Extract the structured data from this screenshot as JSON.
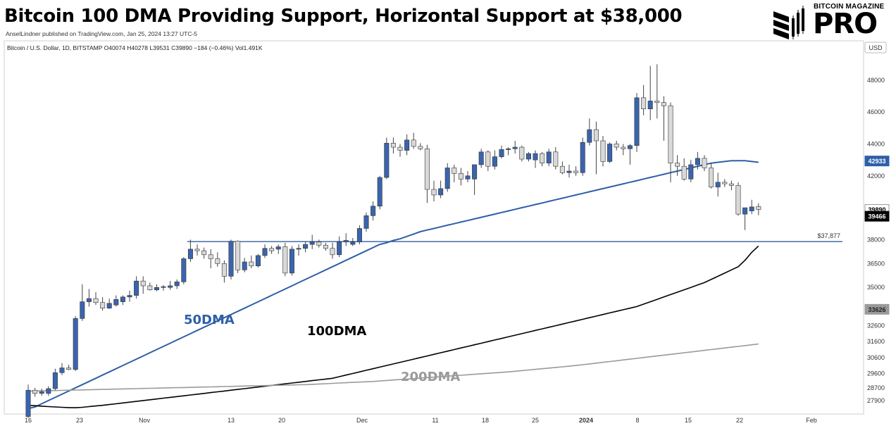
{
  "header": {
    "title": "Bitcoin 100 DMA Providing Support, Horizontal Support at $38,000",
    "byline": "AnselLindner published on TradingView.com, Jan 25, 2024 13:27 UTC-5",
    "symbol_line": "Bitcoin / U.S. Dollar, 1D, BITSTAMP  O40074  H40278  L39531  C39890  −184 (−0.46%)  Vol1.491K"
  },
  "brand": {
    "top": "BITCOIN MAGAZINE",
    "main": "PRO"
  },
  "colors": {
    "up_candle": "#3a64ad",
    "down_candle": "#d9d9d9",
    "ma50": "#2e5fa8",
    "ma100": "#000000",
    "ma200": "#9a9a9a",
    "support_line": "#1f4f9a"
  },
  "chart_data": {
    "type": "candlestick",
    "currency": "USD",
    "x_tick_labels": [
      "16",
      "23",
      "Nov",
      "13",
      "20",
      "Dec",
      "11",
      "18",
      "25",
      "2024",
      "8",
      "15",
      "22",
      "Feb"
    ],
    "y_tick_labels": [
      "48000",
      "46000",
      "44000",
      "42000",
      "38000",
      "36500",
      "35000",
      "32600",
      "31600",
      "30600",
      "29600",
      "28700",
      "27900"
    ],
    "ylim": [
      27500,
      49500
    ],
    "candles": [
      {
        "o": 26900,
        "h": 28900,
        "l": 26800,
        "c": 28550
      },
      {
        "o": 28550,
        "h": 28700,
        "l": 28150,
        "c": 28350
      },
      {
        "o": 28350,
        "h": 28650,
        "l": 28200,
        "c": 28450
      },
      {
        "o": 28350,
        "h": 28800,
        "l": 28200,
        "c": 28650
      },
      {
        "o": 28650,
        "h": 29900,
        "l": 28550,
        "c": 29650
      },
      {
        "o": 29650,
        "h": 30250,
        "l": 29500,
        "c": 29950
      },
      {
        "o": 29950,
        "h": 30150,
        "l": 29800,
        "c": 29850
      },
      {
        "o": 29850,
        "h": 33200,
        "l": 29750,
        "c": 33050
      },
      {
        "o": 33050,
        "h": 35200,
        "l": 32900,
        "c": 34100
      },
      {
        "o": 34100,
        "h": 34900,
        "l": 33800,
        "c": 34300
      },
      {
        "o": 34300,
        "h": 34700,
        "l": 33900,
        "c": 34050
      },
      {
        "o": 34050,
        "h": 34400,
        "l": 33550,
        "c": 33700
      },
      {
        "o": 33700,
        "h": 34300,
        "l": 33650,
        "c": 34000
      },
      {
        "o": 33900,
        "h": 34500,
        "l": 33800,
        "c": 34250
      },
      {
        "o": 34100,
        "h": 34500,
        "l": 33900,
        "c": 34400
      },
      {
        "o": 34400,
        "h": 34800,
        "l": 34100,
        "c": 34500
      },
      {
        "o": 34500,
        "h": 35700,
        "l": 34300,
        "c": 35400
      },
      {
        "o": 35400,
        "h": 35700,
        "l": 34600,
        "c": 35100
      },
      {
        "o": 35100,
        "h": 35300,
        "l": 34800,
        "c": 34850
      },
      {
        "o": 34850,
        "h": 35200,
        "l": 34750,
        "c": 35000
      },
      {
        "o": 35000,
        "h": 35150,
        "l": 34800,
        "c": 35050
      },
      {
        "o": 35000,
        "h": 35400,
        "l": 34850,
        "c": 35100
      },
      {
        "o": 35100,
        "h": 35500,
        "l": 34900,
        "c": 35350
      },
      {
        "o": 35350,
        "h": 36900,
        "l": 35200,
        "c": 36800
      },
      {
        "o": 36800,
        "h": 38000,
        "l": 36600,
        "c": 37400
      },
      {
        "o": 37400,
        "h": 37700,
        "l": 37000,
        "c": 37300
      },
      {
        "o": 37300,
        "h": 37500,
        "l": 36800,
        "c": 37050
      },
      {
        "o": 37050,
        "h": 37400,
        "l": 36200,
        "c": 36800
      },
      {
        "o": 36800,
        "h": 37200,
        "l": 36300,
        "c": 36500
      },
      {
        "o": 36500,
        "h": 36700,
        "l": 35300,
        "c": 35700
      },
      {
        "o": 35700,
        "h": 38000,
        "l": 35500,
        "c": 37900
      },
      {
        "o": 37900,
        "h": 37950,
        "l": 35900,
        "c": 36100
      },
      {
        "o": 36100,
        "h": 36850,
        "l": 35950,
        "c": 36600
      },
      {
        "o": 36600,
        "h": 37000,
        "l": 36200,
        "c": 36350
      },
      {
        "o": 36350,
        "h": 37100,
        "l": 36250,
        "c": 37000
      },
      {
        "o": 37000,
        "h": 37700,
        "l": 36850,
        "c": 37450
      },
      {
        "o": 37450,
        "h": 37600,
        "l": 37100,
        "c": 37300
      },
      {
        "o": 37400,
        "h": 37700,
        "l": 37100,
        "c": 37550
      },
      {
        "o": 37550,
        "h": 37800,
        "l": 35700,
        "c": 35900
      },
      {
        "o": 35900,
        "h": 37600,
        "l": 35750,
        "c": 37400
      },
      {
        "o": 37400,
        "h": 37700,
        "l": 37000,
        "c": 37450
      },
      {
        "o": 37450,
        "h": 37900,
        "l": 37200,
        "c": 37700
      },
      {
        "o": 37700,
        "h": 38300,
        "l": 37400,
        "c": 37850
      },
      {
        "o": 37850,
        "h": 38000,
        "l": 37500,
        "c": 37650
      },
      {
        "o": 37650,
        "h": 37800,
        "l": 37300,
        "c": 37450
      },
      {
        "o": 37450,
        "h": 37800,
        "l": 36800,
        "c": 37050
      },
      {
        "o": 37050,
        "h": 38200,
        "l": 36900,
        "c": 37850
      },
      {
        "o": 37850,
        "h": 38400,
        "l": 37600,
        "c": 37950
      },
      {
        "o": 37700,
        "h": 38100,
        "l": 37600,
        "c": 37850
      },
      {
        "o": 37850,
        "h": 38900,
        "l": 37700,
        "c": 38700
      },
      {
        "o": 38700,
        "h": 39700,
        "l": 38500,
        "c": 39500
      },
      {
        "o": 39500,
        "h": 40400,
        "l": 39200,
        "c": 40100
      },
      {
        "o": 40100,
        "h": 42000,
        "l": 39900,
        "c": 41900
      },
      {
        "o": 41900,
        "h": 44400,
        "l": 41800,
        "c": 44050
      },
      {
        "o": 44050,
        "h": 44400,
        "l": 43400,
        "c": 43800
      },
      {
        "o": 43800,
        "h": 44000,
        "l": 43200,
        "c": 43600
      },
      {
        "o": 43600,
        "h": 44600,
        "l": 43300,
        "c": 44250
      },
      {
        "o": 44250,
        "h": 44700,
        "l": 43700,
        "c": 43850
      },
      {
        "o": 43850,
        "h": 44050,
        "l": 43600,
        "c": 43700
      },
      {
        "o": 43700,
        "h": 43950,
        "l": 40300,
        "c": 41150
      },
      {
        "o": 41150,
        "h": 41700,
        "l": 40400,
        "c": 40800
      },
      {
        "o": 40800,
        "h": 41700,
        "l": 40600,
        "c": 41200
      },
      {
        "o": 41200,
        "h": 42800,
        "l": 41000,
        "c": 42500
      },
      {
        "o": 42500,
        "h": 42700,
        "l": 41600,
        "c": 42150
      },
      {
        "o": 42150,
        "h": 42500,
        "l": 41400,
        "c": 41800
      },
      {
        "o": 41800,
        "h": 42300,
        "l": 41600,
        "c": 42000
      },
      {
        "o": 41800,
        "h": 42700,
        "l": 40800,
        "c": 42700
      },
      {
        "o": 42700,
        "h": 43700,
        "l": 42500,
        "c": 43500
      },
      {
        "o": 43500,
        "h": 43600,
        "l": 42300,
        "c": 42600
      },
      {
        "o": 42600,
        "h": 43600,
        "l": 42400,
        "c": 43200
      },
      {
        "o": 43200,
        "h": 43900,
        "l": 43100,
        "c": 43650
      },
      {
        "o": 43650,
        "h": 43800,
        "l": 43300,
        "c": 43700
      },
      {
        "o": 43700,
        "h": 44200,
        "l": 43400,
        "c": 43800
      },
      {
        "o": 43800,
        "h": 43900,
        "l": 42900,
        "c": 43050
      },
      {
        "o": 43050,
        "h": 43500,
        "l": 42900,
        "c": 43400
      },
      {
        "o": 43000,
        "h": 43600,
        "l": 42500,
        "c": 43400
      },
      {
        "o": 43400,
        "h": 43500,
        "l": 42600,
        "c": 42800
      },
      {
        "o": 42800,
        "h": 43700,
        "l": 42600,
        "c": 43500
      },
      {
        "o": 43500,
        "h": 43800,
        "l": 42400,
        "c": 42600
      },
      {
        "o": 42600,
        "h": 42900,
        "l": 42100,
        "c": 42200
      },
      {
        "o": 42200,
        "h": 42700,
        "l": 41900,
        "c": 42300
      },
      {
        "o": 42300,
        "h": 42600,
        "l": 42000,
        "c": 42200
      },
      {
        "o": 42200,
        "h": 44400,
        "l": 42000,
        "c": 44100
      },
      {
        "o": 44100,
        "h": 45600,
        "l": 43900,
        "c": 44900
      },
      {
        "o": 44900,
        "h": 45400,
        "l": 42100,
        "c": 44200
      },
      {
        "o": 44200,
        "h": 44500,
        "l": 42600,
        "c": 42900
      },
      {
        "o": 42900,
        "h": 44100,
        "l": 42800,
        "c": 44000
      },
      {
        "o": 44000,
        "h": 44200,
        "l": 43600,
        "c": 43800
      },
      {
        "o": 43800,
        "h": 44000,
        "l": 43300,
        "c": 43700
      },
      {
        "o": 43700,
        "h": 44000,
        "l": 42700,
        "c": 43900
      },
      {
        "o": 43900,
        "h": 47200,
        "l": 43500,
        "c": 46900
      },
      {
        "o": 46900,
        "h": 47700,
        "l": 45800,
        "c": 46200
      },
      {
        "o": 46200,
        "h": 48900,
        "l": 45500,
        "c": 46700
      },
      {
        "o": 46700,
        "h": 49000,
        "l": 45600,
        "c": 46600
      },
      {
        "o": 46600,
        "h": 47000,
        "l": 44200,
        "c": 46400
      },
      {
        "o": 46400,
        "h": 46600,
        "l": 41600,
        "c": 42800
      },
      {
        "o": 42800,
        "h": 43300,
        "l": 42000,
        "c": 42600
      },
      {
        "o": 42600,
        "h": 43100,
        "l": 41700,
        "c": 41800
      },
      {
        "o": 41800,
        "h": 43000,
        "l": 41600,
        "c": 42700
      },
      {
        "o": 42700,
        "h": 43500,
        "l": 42400,
        "c": 43100
      },
      {
        "o": 43100,
        "h": 43300,
        "l": 42300,
        "c": 42500
      },
      {
        "o": 42500,
        "h": 42800,
        "l": 41200,
        "c": 41300
      },
      {
        "o": 41300,
        "h": 42200,
        "l": 40700,
        "c": 41600
      },
      {
        "o": 41600,
        "h": 41800,
        "l": 41300,
        "c": 41500
      },
      {
        "o": 41500,
        "h": 41700,
        "l": 41100,
        "c": 41400
      },
      {
        "o": 41400,
        "h": 41600,
        "l": 39500,
        "c": 39600
      },
      {
        "o": 39600,
        "h": 40000,
        "l": 38600,
        "c": 40000
      },
      {
        "o": 39800,
        "h": 40500,
        "l": 39600,
        "c": 40050
      },
      {
        "o": 40074,
        "h": 40278,
        "l": 39531,
        "c": 39890
      }
    ],
    "moving_averages": [
      {
        "name": "50DMA",
        "values": [
          27400,
          27500,
          27700,
          27900,
          28100,
          28300,
          28500,
          28700,
          28900,
          29100,
          29300,
          29500,
          29700,
          29900,
          30100,
          30300,
          30500,
          30700,
          30900,
          31100,
          31300,
          31500,
          31700,
          31900,
          32100,
          32300,
          32500,
          32700,
          32900,
          33100,
          33300,
          33500,
          33700,
          33900,
          34100,
          34300,
          34500,
          34700,
          34900,
          35100,
          35300,
          35500,
          35700,
          35900,
          36100,
          36300,
          36500,
          36700,
          36900,
          37100,
          37300,
          37500,
          37700,
          37800,
          37950,
          38050,
          38200,
          38350,
          38500,
          38600,
          38700,
          38800,
          38900,
          39000,
          39100,
          39200,
          39300,
          39400,
          39500,
          39600,
          39700,
          39800,
          39900,
          40000,
          40100,
          40200,
          40300,
          40400,
          40500,
          40600,
          40700,
          40800,
          40900,
          41000,
          41100,
          41200,
          41300,
          41400,
          41500,
          41600,
          41700,
          41800,
          41900,
          42000,
          42100,
          42200,
          42300,
          42400,
          42500,
          42600,
          42700,
          42800,
          42850,
          42900,
          42950,
          42950,
          42950,
          42900,
          42850,
          42933
        ]
      },
      {
        "name": "100DMA",
        "values": [
          27600,
          27580,
          27550,
          27520,
          27500,
          27480,
          27460,
          27450,
          27480,
          27520,
          27560,
          27600,
          27650,
          27700,
          27750,
          27800,
          27850,
          27900,
          27950,
          28000,
          28050,
          28100,
          28150,
          28200,
          28250,
          28300,
          28350,
          28400,
          28450,
          28500,
          28550,
          28600,
          28650,
          28700,
          28750,
          28800,
          28850,
          28900,
          28950,
          29000,
          29050,
          29100,
          29150,
          29200,
          29250,
          29300,
          29400,
          29500,
          29600,
          29700,
          29800,
          29900,
          30000,
          30100,
          30200,
          30300,
          30400,
          30500,
          30600,
          30700,
          30800,
          30900,
          31000,
          31100,
          31200,
          31300,
          31400,
          31500,
          31600,
          31700,
          31800,
          31900,
          32000,
          32100,
          32200,
          32300,
          32400,
          32500,
          32600,
          32700,
          32800,
          32900,
          33000,
          33100,
          33200,
          33300,
          33400,
          33500,
          33600,
          33700,
          33800,
          33950,
          34100,
          34250,
          34400,
          34550,
          34700,
          34850,
          35000,
          35150,
          35300,
          35500,
          35700,
          35900,
          36100,
          36300,
          36700,
          37200,
          37600,
          39466
        ]
      },
      {
        "name": "200DMA",
        "values": [
          28500,
          28500,
          28510,
          28520,
          28530,
          28540,
          28550,
          28560,
          28570,
          28580,
          28590,
          28600,
          28610,
          28620,
          28630,
          28640,
          28650,
          28660,
          28670,
          28680,
          28690,
          28700,
          28710,
          28720,
          28730,
          28740,
          28750,
          28760,
          28770,
          28780,
          28790,
          28800,
          28810,
          28820,
          28830,
          28840,
          28850,
          28860,
          28870,
          28880,
          28890,
          28900,
          28920,
          28940,
          28960,
          28980,
          29000,
          29020,
          29040,
          29060,
          29080,
          29100,
          29130,
          29160,
          29190,
          29220,
          29250,
          29280,
          29310,
          29340,
          29370,
          29400,
          29430,
          29460,
          29490,
          29520,
          29550,
          29580,
          29610,
          29640,
          29670,
          29700,
          29740,
          29780,
          29820,
          29860,
          29900,
          29940,
          29980,
          30020,
          30060,
          30100,
          30150,
          30200,
          30250,
          30300,
          30350,
          30400,
          30450,
          30500,
          30550,
          30600,
          30650,
          30700,
          30750,
          30800,
          30850,
          30900,
          30950,
          31000,
          31050,
          31100,
          31150,
          31200,
          31250,
          31300,
          31350,
          31400,
          31450,
          33626
        ]
      }
    ],
    "last_values": {
      "price": "39890",
      "ma50": "42933",
      "ma100": "39466",
      "ma200": "33626"
    },
    "horizontal_support": {
      "value": 37877,
      "label": "$37,877"
    },
    "ma_labels": [
      "50DMA",
      "100DMA",
      "200DMA"
    ]
  }
}
